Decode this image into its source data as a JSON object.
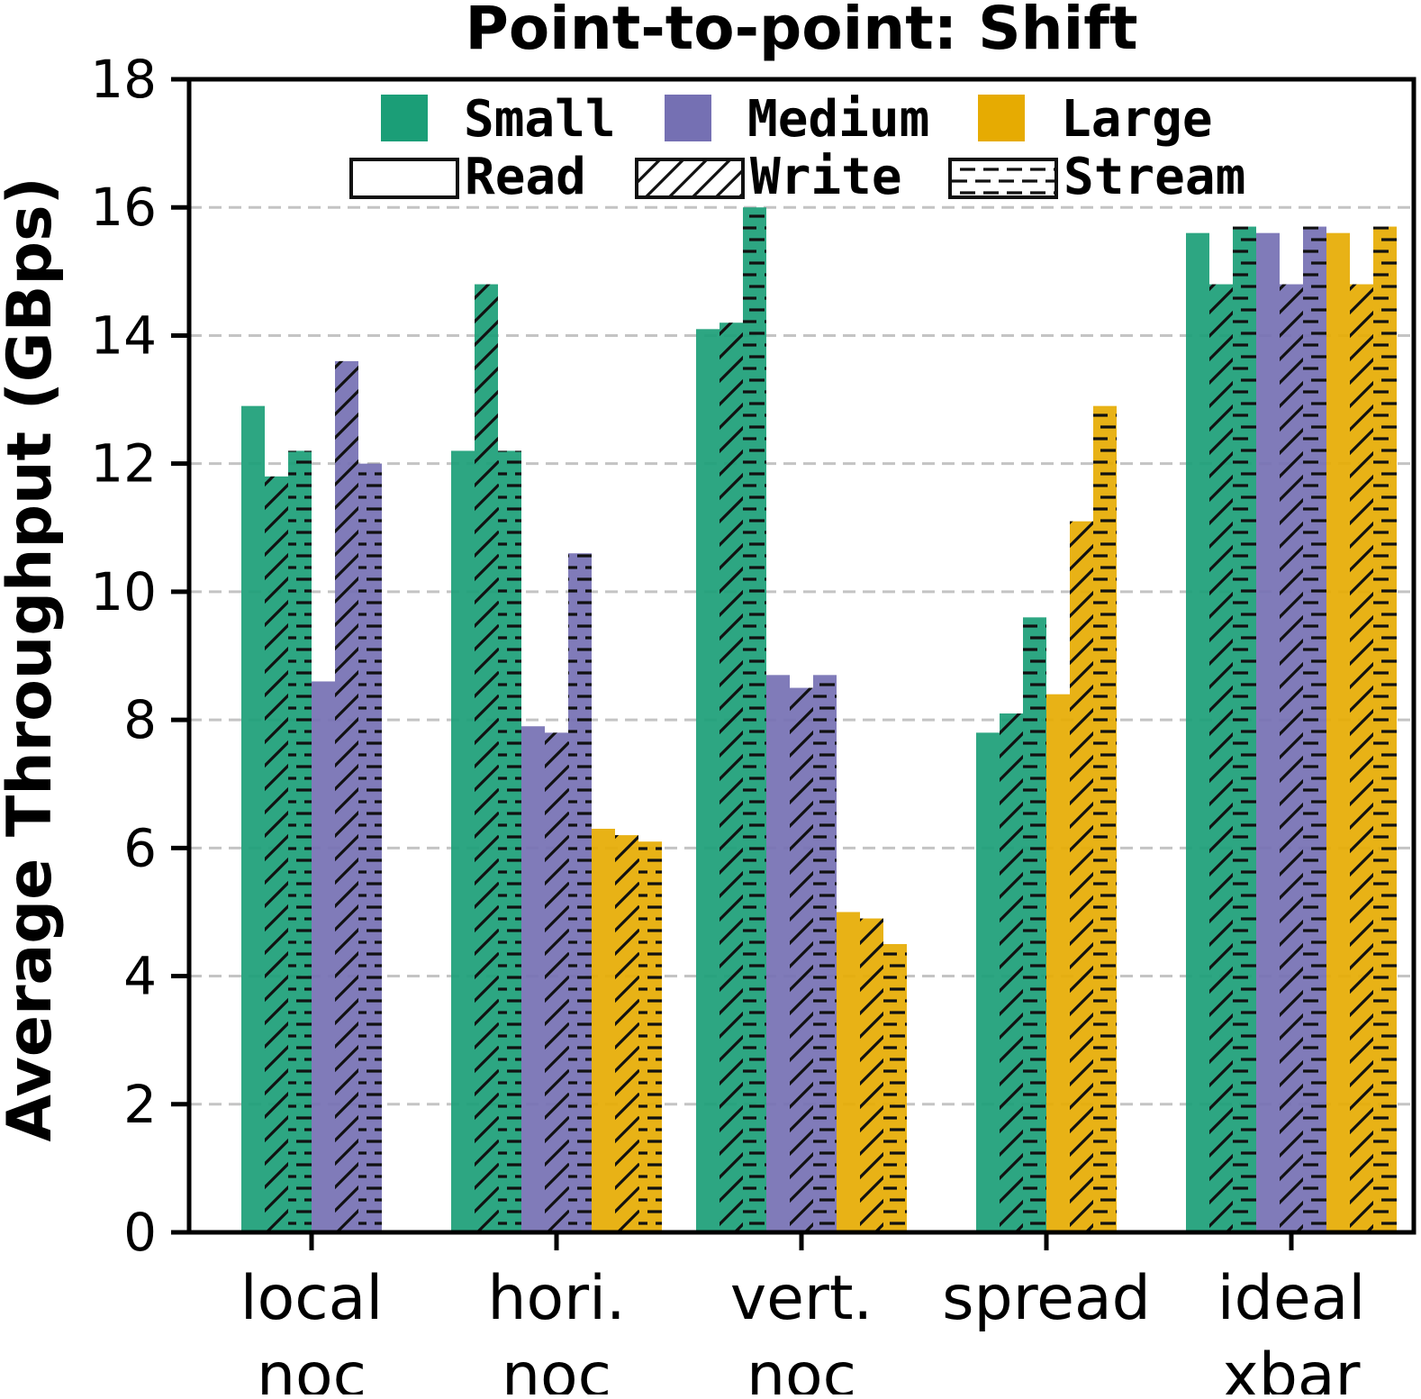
{
  "chart_data": {
    "type": "bar",
    "title": "Point-to-point: Shift",
    "xlabel": "",
    "ylabel": "Average Throughput (GBps)",
    "ylim": [
      0,
      18
    ],
    "yticks": [
      "0",
      "2",
      "4",
      "6",
      "8",
      "10",
      "12",
      "14",
      "16",
      "18"
    ],
    "grid": true,
    "categories": [
      [
        "local",
        "noc"
      ],
      [
        "hori.",
        "noc"
      ],
      [
        "vert.",
        "noc"
      ],
      [
        "spread",
        ""
      ],
      [
        "ideal",
        "xbar"
      ]
    ],
    "sizes": [
      {
        "name": "Small",
        "color": "#1b9e77"
      },
      {
        "name": "Medium",
        "color": "#7570b3"
      },
      {
        "name": "Large",
        "color": "#e6ab02"
      }
    ],
    "patterns": [
      {
        "name": "Read",
        "hatch": "none"
      },
      {
        "name": "Write",
        "hatch": "diagonal"
      },
      {
        "name": "Stream",
        "hatch": "horizontal"
      }
    ],
    "series": [
      {
        "name": "Small Read",
        "size": "Small",
        "pattern": "Read",
        "values": [
          12.9,
          12.2,
          14.1,
          7.8,
          15.6
        ]
      },
      {
        "name": "Small Write",
        "size": "Small",
        "pattern": "Write",
        "values": [
          11.8,
          14.8,
          14.2,
          8.1,
          14.8
        ]
      },
      {
        "name": "Small Stream",
        "size": "Small",
        "pattern": "Stream",
        "values": [
          12.2,
          12.2,
          16.0,
          9.6,
          15.7
        ]
      },
      {
        "name": "Medium Read",
        "size": "Medium",
        "pattern": "Read",
        "values": [
          8.6,
          7.9,
          8.7,
          null,
          15.6
        ]
      },
      {
        "name": "Medium Write",
        "size": "Medium",
        "pattern": "Write",
        "values": [
          13.6,
          7.8,
          8.5,
          null,
          14.8
        ]
      },
      {
        "name": "Medium Stream",
        "size": "Medium",
        "pattern": "Stream",
        "values": [
          12.0,
          10.6,
          8.7,
          null,
          15.7
        ]
      },
      {
        "name": "Large Read",
        "size": "Large",
        "pattern": "Read",
        "values": [
          null,
          6.3,
          5.0,
          8.4,
          15.6
        ]
      },
      {
        "name": "Large Write",
        "size": "Large",
        "pattern": "Write",
        "values": [
          null,
          6.2,
          4.9,
          11.1,
          14.8
        ]
      },
      {
        "name": "Large Stream",
        "size": "Large",
        "pattern": "Stream",
        "values": [
          null,
          6.1,
          4.5,
          12.9,
          15.7
        ]
      }
    ],
    "legend_placement": "top-center"
  }
}
